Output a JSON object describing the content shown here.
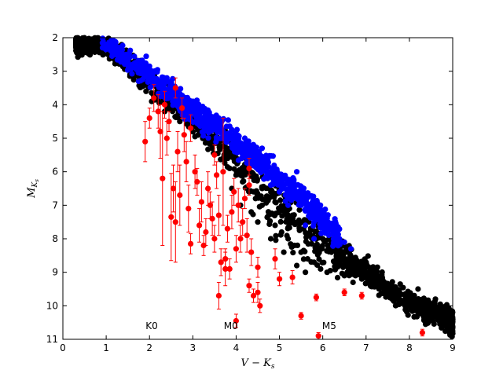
{
  "chart_data": {
    "type": "scatter",
    "xlabel": "V − K_s",
    "ylabel": "M_{K_s}",
    "xlim": [
      0,
      9
    ],
    "ylim": [
      11,
      2
    ],
    "y_inverted": true,
    "grid": false,
    "x_ticks": [
      "0",
      "1",
      "2",
      "3",
      "4",
      "5",
      "6",
      "7",
      "8",
      "9"
    ],
    "y_ticks": [
      "2",
      "3",
      "4",
      "5",
      "6",
      "7",
      "8",
      "9",
      "10",
      "11"
    ],
    "annotations": [
      {
        "text": "K0",
        "x": 2.05,
        "y": 10.7
      },
      {
        "text": "M0",
        "x": 3.88,
        "y": 10.7
      },
      {
        "text": "M5",
        "x": 6.15,
        "y": 10.7
      }
    ],
    "colors": {
      "black_series": "#000000",
      "blue_series": "#0000ff",
      "red_series": "#ff0000"
    },
    "series": [
      {
        "color": "#000000",
        "description": "dense main-sequence cloud",
        "trend": {
          "x": [
            0.3,
            1.0,
            2.0,
            3.0,
            4.0,
            5.0,
            6.0,
            7.0,
            8.0,
            9.0
          ],
          "y": [
            2.1,
            2.2,
            3.3,
            4.5,
            5.7,
            7.1,
            8.3,
            9.0,
            9.9,
            10.5
          ]
        },
        "points": [
          [
            0.33,
            2.08
          ],
          [
            0.62,
            2.05
          ],
          [
            0.82,
            2.12
          ],
          [
            1.05,
            2.25
          ],
          [
            1.15,
            2.5
          ],
          [
            1.38,
            2.8
          ],
          [
            1.55,
            3.1
          ],
          [
            1.75,
            3.3
          ],
          [
            1.92,
            3.6
          ],
          [
            2.05,
            3.9
          ],
          [
            2.2,
            3.7
          ],
          [
            2.35,
            4.2
          ],
          [
            2.5,
            4.0
          ],
          [
            2.7,
            4.5
          ],
          [
            2.85,
            4.3
          ],
          [
            3.0,
            4.8
          ],
          [
            3.15,
            4.6
          ],
          [
            3.3,
            5.0
          ],
          [
            3.45,
            5.3
          ],
          [
            3.55,
            5.1
          ],
          [
            3.7,
            5.6
          ],
          [
            3.85,
            5.9
          ],
          [
            4.0,
            6.1
          ],
          [
            4.15,
            6.3
          ],
          [
            4.3,
            6.6
          ],
          [
            4.45,
            6.8
          ],
          [
            4.6,
            7.0
          ],
          [
            4.75,
            7.3
          ],
          [
            4.9,
            7.6
          ],
          [
            5.05,
            7.8
          ],
          [
            5.2,
            8.0
          ],
          [
            5.35,
            8.2
          ],
          [
            5.5,
            8.4
          ],
          [
            5.65,
            8.6
          ],
          [
            5.8,
            8.7
          ],
          [
            5.95,
            8.9
          ],
          [
            6.1,
            9.0
          ],
          [
            6.3,
            8.8
          ],
          [
            6.5,
            9.1
          ],
          [
            6.7,
            9.3
          ],
          [
            6.9,
            9.2
          ],
          [
            7.1,
            9.4
          ],
          [
            7.3,
            9.5
          ],
          [
            7.5,
            9.6
          ],
          [
            7.7,
            9.8
          ],
          [
            7.9,
            10.0
          ],
          [
            8.1,
            9.9
          ],
          [
            8.3,
            10.2
          ],
          [
            8.5,
            10.3
          ],
          [
            8.7,
            10.4
          ],
          [
            8.85,
            10.5
          ],
          [
            8.95,
            10.7
          ],
          [
            8.6,
            9.8
          ],
          [
            8.2,
            9.5
          ],
          [
            7.0,
            8.7
          ],
          [
            6.6,
            8.6
          ],
          [
            3.0,
            3.9
          ],
          [
            3.4,
            4.9
          ],
          [
            3.75,
            5.4
          ],
          [
            4.2,
            6.0
          ],
          [
            4.6,
            6.5
          ],
          [
            4.9,
            6.9
          ],
          [
            5.3,
            7.3
          ],
          [
            5.7,
            7.9
          ],
          [
            6.2,
            8.4
          ],
          [
            6.8,
            8.9
          ],
          [
            2.55,
            3.6
          ],
          [
            2.15,
            3.3
          ],
          [
            1.85,
            2.9
          ],
          [
            4.5,
            7.5
          ],
          [
            4.8,
            8.0
          ],
          [
            5.1,
            8.4
          ],
          [
            5.4,
            8.8
          ],
          [
            5.6,
            9.0
          ],
          [
            3.9,
            6.5
          ],
          [
            4.1,
            7.0
          ],
          [
            4.35,
            7.2
          ],
          [
            6.0,
            8.0
          ]
        ]
      },
      {
        "color": "#0000ff",
        "description": "upper edge of main sequence",
        "trend": {
          "x": [
            0.9,
            2.0,
            3.0,
            4.0,
            5.0,
            6.0,
            6.4
          ],
          "y": [
            2.0,
            3.1,
            4.2,
            5.1,
            6.2,
            7.4,
            8.0
          ]
        },
        "points": [
          [
            0.92,
            2.02
          ],
          [
            1.1,
            2.15
          ],
          [
            1.3,
            2.45
          ],
          [
            1.5,
            2.7
          ],
          [
            1.7,
            2.95
          ],
          [
            1.9,
            3.1
          ],
          [
            2.1,
            3.4
          ],
          [
            2.3,
            3.6
          ],
          [
            2.5,
            3.75
          ],
          [
            2.7,
            4.0
          ],
          [
            2.9,
            4.2
          ],
          [
            3.1,
            4.3
          ],
          [
            3.3,
            4.5
          ],
          [
            3.5,
            4.6
          ],
          [
            3.7,
            4.8
          ],
          [
            3.9,
            5.0
          ],
          [
            4.1,
            5.2
          ],
          [
            4.3,
            5.4
          ],
          [
            4.5,
            5.5
          ],
          [
            4.7,
            5.8
          ],
          [
            4.9,
            6.0
          ],
          [
            5.1,
            6.2
          ],
          [
            5.3,
            6.5
          ],
          [
            5.5,
            6.8
          ],
          [
            5.7,
            7.1
          ],
          [
            5.9,
            7.4
          ],
          [
            6.1,
            7.7
          ],
          [
            6.3,
            7.9
          ],
          [
            6.5,
            8.1
          ],
          [
            6.65,
            8.3
          ],
          [
            5.4,
            6.0
          ],
          [
            5.0,
            6.6
          ],
          [
            5.2,
            7.0
          ],
          [
            5.6,
            7.6
          ],
          [
            5.8,
            8.0
          ],
          [
            4.8,
            6.4
          ],
          [
            2.0,
            2.85
          ],
          [
            2.4,
            3.2
          ],
          [
            3.0,
            3.9
          ],
          [
            3.6,
            4.4
          ],
          [
            4.2,
            5.0
          ],
          [
            4.6,
            5.3
          ]
        ]
      },
      {
        "color": "#ff0000",
        "description": "red points with error bars",
        "points": [
          {
            "x": 1.9,
            "y": 5.1,
            "err": 0.6
          },
          {
            "x": 2.0,
            "y": 4.4,
            "err": 0.3
          },
          {
            "x": 2.1,
            "y": 3.8,
            "err": 0.4
          },
          {
            "x": 2.2,
            "y": 4.2,
            "err": 0.5
          },
          {
            "x": 2.25,
            "y": 4.8,
            "err": 0.8
          },
          {
            "x": 2.3,
            "y": 6.2,
            "err": 2.0
          },
          {
            "x": 2.35,
            "y": 4.0,
            "err": 0.4
          },
          {
            "x": 2.4,
            "y": 5.0,
            "err": 0.5
          },
          {
            "x": 2.45,
            "y": 4.5,
            "err": 0.3
          },
          {
            "x": 2.5,
            "y": 7.35,
            "err": 1.3
          },
          {
            "x": 2.55,
            "y": 6.5,
            "err": 0.7
          },
          {
            "x": 2.6,
            "y": 7.5,
            "err": 1.2
          },
          {
            "x": 2.65,
            "y": 5.4,
            "err": 0.6
          },
          {
            "x": 2.7,
            "y": 6.7,
            "err": 0.9
          },
          {
            "x": 2.75,
            "y": 4.1,
            "err": 0.3
          },
          {
            "x": 2.8,
            "y": 4.9,
            "err": 0.5
          },
          {
            "x": 2.85,
            "y": 5.7,
            "err": 0.6
          },
          {
            "x": 2.9,
            "y": 7.1,
            "err": 0.7
          },
          {
            "x": 2.95,
            "y": 8.15,
            "err": 0.3
          },
          {
            "x": 3.05,
            "y": 6.0,
            "err": 0.5
          },
          {
            "x": 3.1,
            "y": 6.3,
            "err": 0.4
          },
          {
            "x": 3.15,
            "y": 7.6,
            "err": 0.5
          },
          {
            "x": 3.2,
            "y": 6.9,
            "err": 0.6
          },
          {
            "x": 3.25,
            "y": 8.2,
            "err": 0.3
          },
          {
            "x": 3.3,
            "y": 7.8,
            "err": 0.4
          },
          {
            "x": 3.35,
            "y": 6.5,
            "err": 0.5
          },
          {
            "x": 3.4,
            "y": 7.0,
            "err": 0.4
          },
          {
            "x": 3.45,
            "y": 7.4,
            "err": 0.5
          },
          {
            "x": 3.5,
            "y": 8.0,
            "err": 0.4
          },
          {
            "x": 3.55,
            "y": 6.1,
            "err": 0.4
          },
          {
            "x": 3.6,
            "y": 7.3,
            "err": 0.6
          },
          {
            "x": 3.65,
            "y": 8.7,
            "err": 0.4
          },
          {
            "x": 3.7,
            "y": 6.0,
            "err": 1.6
          },
          {
            "x": 3.75,
            "y": 8.6,
            "err": 0.3
          },
          {
            "x": 3.8,
            "y": 7.7,
            "err": 0.4
          },
          {
            "x": 3.85,
            "y": 8.9,
            "err": 0.3
          },
          {
            "x": 3.9,
            "y": 7.2,
            "err": 0.5
          },
          {
            "x": 3.95,
            "y": 6.6,
            "err": 0.4
          },
          {
            "x": 4.0,
            "y": 8.3,
            "err": 0.4
          },
          {
            "x": 4.05,
            "y": 7.0,
            "err": 0.5
          },
          {
            "x": 4.1,
            "y": 8.0,
            "err": 0.4
          },
          {
            "x": 4.15,
            "y": 7.5,
            "err": 0.4
          },
          {
            "x": 4.2,
            "y": 6.8,
            "err": 0.3
          },
          {
            "x": 4.25,
            "y": 7.9,
            "err": 0.5
          },
          {
            "x": 4.3,
            "y": 6.4,
            "err": 0.3
          },
          {
            "x": 4.35,
            "y": 8.4,
            "err": 0.4
          },
          {
            "x": 3.6,
            "y": 9.7,
            "err": 0.4
          },
          {
            "x": 3.75,
            "y": 8.9,
            "err": 0.5
          },
          {
            "x": 4.0,
            "y": 10.45,
            "err": 0.2
          },
          {
            "x": 4.4,
            "y": 9.7,
            "err": 0.2
          },
          {
            "x": 4.5,
            "y": 9.6,
            "err": 0.3
          },
          {
            "x": 4.55,
            "y": 10.0,
            "err": 0.2
          },
          {
            "x": 4.5,
            "y": 8.85,
            "err": 0.3
          },
          {
            "x": 4.3,
            "y": 9.4,
            "err": 0.2
          },
          {
            "x": 4.9,
            "y": 8.6,
            "err": 0.3
          },
          {
            "x": 5.0,
            "y": 9.2,
            "err": 0.2
          },
          {
            "x": 5.3,
            "y": 9.15,
            "err": 0.2
          },
          {
            "x": 5.5,
            "y": 10.3,
            "err": 0.1
          },
          {
            "x": 5.85,
            "y": 9.75,
            "err": 0.1
          },
          {
            "x": 5.9,
            "y": 10.9,
            "err": 0.1
          },
          {
            "x": 6.5,
            "y": 9.6,
            "err": 0.1
          },
          {
            "x": 6.9,
            "y": 9.7,
            "err": 0.1
          },
          {
            "x": 8.3,
            "y": 10.8,
            "err": 0.1
          },
          {
            "x": 4.3,
            "y": 5.9,
            "err": 0.3
          },
          {
            "x": 3.5,
            "y": 5.5,
            "err": 0.3
          },
          {
            "x": 2.95,
            "y": 4.7,
            "err": 0.4
          },
          {
            "x": 2.6,
            "y": 3.5,
            "err": 0.3
          }
        ]
      }
    ]
  }
}
